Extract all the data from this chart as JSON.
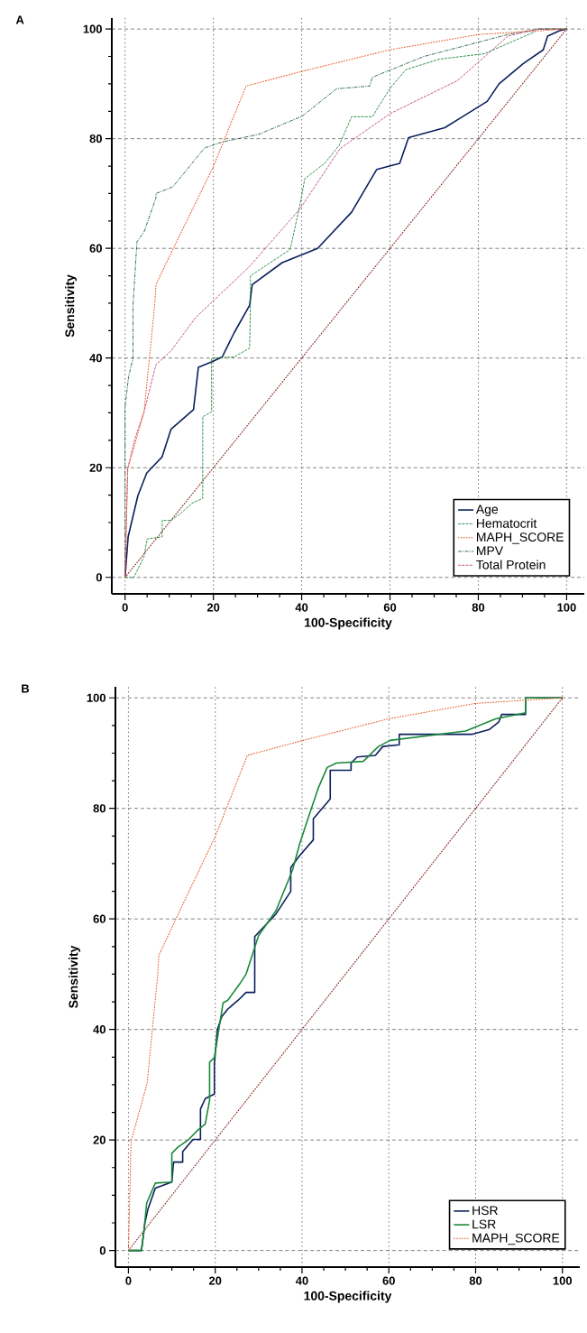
{
  "chart_data": [
    {
      "type": "line",
      "title": "A",
      "xlabel": "100-Specificity",
      "ylabel": "Sensitivity",
      "xlim": [
        -3,
        104
      ],
      "ylim": [
        -3,
        102
      ],
      "xticks": [
        0,
        20,
        40,
        60,
        80,
        100
      ],
      "yticks": [
        0,
        20,
        40,
        60,
        80,
        100
      ],
      "grid": true,
      "legend": "bottom right",
      "series": [
        {
          "name": "Age",
          "color": "#0a1f5c",
          "line_style": "solid",
          "x": [
            0,
            0.7,
            2.9,
            4.9,
            8.4,
            10.4,
            15.5,
            16.6,
            19.6,
            22,
            24.7,
            28.2,
            28.8,
            35.6,
            43.6,
            51.3,
            57,
            62.2,
            64.2,
            72.4,
            82,
            84.7,
            90.2,
            94.7,
            95.7,
            98.4,
            100
          ],
          "values": [
            0,
            7.4,
            14.9,
            19,
            22,
            27,
            30.6,
            38.3,
            39.3,
            40.2,
            44.6,
            49.6,
            53.4,
            57.4,
            60,
            66.6,
            74.4,
            75.5,
            80.2,
            82,
            86.8,
            90,
            93.7,
            96.2,
            98.7,
            99.7,
            100
          ]
        },
        {
          "name": "Hematocrit",
          "color": "#1a8a3a",
          "line_style": "dashed",
          "x": [
            0,
            2,
            4.3,
            5,
            8.4,
            8.4,
            10.4,
            12.5,
            15.1,
            17.6,
            17.6,
            19.6,
            19.6,
            24.7,
            28.2,
            28.4,
            28.4,
            37.4,
            39.7,
            40.7,
            45.2,
            48.5,
            51.3,
            56,
            60.1,
            63.6,
            71.2,
            81.4,
            92.8,
            93.5,
            100
          ],
          "values": [
            0,
            0,
            3.8,
            7,
            7.4,
            10.4,
            10.4,
            11.6,
            13.5,
            14.4,
            29.3,
            30.2,
            40,
            40.2,
            41.8,
            49.6,
            55,
            59.8,
            68.3,
            72.7,
            75.5,
            78.8,
            84,
            84,
            89.3,
            92.6,
            94.5,
            95.5,
            99.5,
            100,
            100
          ]
        },
        {
          "name": "MAPH_SCORE",
          "color": "#e8602c",
          "line_style": "dotted",
          "x": [
            0,
            0.6,
            4.3,
            6.7,
            7,
            11.9,
            20,
            27.4,
            39.7,
            59.9,
            80,
            100
          ],
          "values": [
            0,
            19.8,
            30.2,
            49.6,
            53.4,
            61.6,
            74.9,
            89.6,
            92.2,
            96.2,
            99,
            100
          ]
        },
        {
          "name": "MPV",
          "color": "#1f5f4a",
          "line_style": "dashdot",
          "x": [
            0,
            0,
            0.8,
            1.8,
            1.8,
            2.7,
            4.3,
            7,
            7,
            10.8,
            18,
            22,
            30.3,
            40.1,
            47.9,
            55.4,
            56,
            67.7,
            86.7,
            93.5,
            100
          ],
          "values": [
            0,
            31,
            36.6,
            40,
            49.6,
            61.2,
            63,
            69.2,
            70,
            71.2,
            78.3,
            79.4,
            80.8,
            84.1,
            89.1,
            89.6,
            91.2,
            95,
            99,
            100,
            100
          ]
        },
        {
          "name": "Total Protein",
          "color": "#c0408a",
          "line_style": "dashed",
          "x": [
            0,
            0.6,
            2.2,
            4.3,
            7,
            10.4,
            16,
            28.2,
            39.7,
            48.7,
            60.1,
            75.3,
            86.7,
            93.5,
            100
          ],
          "values": [
            0,
            19.8,
            25.2,
            30.2,
            38.8,
            41.3,
            47.4,
            56.7,
            67.3,
            78.2,
            84.6,
            90.6,
            98.7,
            100,
            100
          ]
        },
        {
          "color": "#8b2525",
          "line_style": "dotted",
          "x": [
            0,
            100
          ],
          "values": [
            0,
            100
          ]
        }
      ]
    },
    {
      "type": "line",
      "title": "B",
      "xlabel": "100-Specificity",
      "ylabel": "Sensitivity",
      "xlim": [
        -3,
        104
      ],
      "ylim": [
        -3,
        102
      ],
      "xticks": [
        0,
        20,
        40,
        60,
        80,
        100
      ],
      "yticks": [
        0,
        20,
        40,
        60,
        80,
        100
      ],
      "grid": true,
      "legend": "bottom right",
      "series": [
        {
          "name": "HSR",
          "color": "#0a1f5c",
          "line_style": "solid",
          "x": [
            0,
            3,
            3.8,
            4.5,
            6.2,
            10,
            10.4,
            12.5,
            12.5,
            14.9,
            16.6,
            16.6,
            17.7,
            19.8,
            19.8,
            20.5,
            21.5,
            22.9,
            25.3,
            27.1,
            29.1,
            29.1,
            34,
            37.4,
            37.4,
            39.5,
            42.6,
            42.6,
            46.5,
            46.5,
            51.3,
            51.3,
            52.7,
            56.9,
            58.6,
            62.4,
            62.4,
            79.1,
            83.2,
            85.3,
            86,
            91.5,
            91.5,
            100
          ],
          "values": [
            0,
            0,
            5,
            7.5,
            11.3,
            12.4,
            16,
            16,
            17.9,
            20.1,
            20.1,
            25.6,
            27.5,
            28.3,
            33.8,
            40,
            42.3,
            43.7,
            45.3,
            46.7,
            46.7,
            56.8,
            60.9,
            65,
            69.3,
            71.5,
            74.3,
            78.1,
            81.7,
            86.9,
            86.9,
            88.2,
            89.3,
            89.6,
            91.2,
            91.5,
            93.4,
            93.4,
            94.3,
            95.6,
            97,
            97,
            100,
            100
          ]
        },
        {
          "name": "LSR",
          "color": "#1a8a3a",
          "line_style": "solid",
          "x": [
            0,
            3,
            3.5,
            4.2,
            6.2,
            10,
            10,
            11.4,
            13.9,
            16,
            17.7,
            18.7,
            18.7,
            19.8,
            21.8,
            22.9,
            25.7,
            27.1,
            30,
            34,
            37.8,
            39.5,
            41.6,
            43.7,
            45.8,
            47.9,
            54.1,
            57.6,
            60.3,
            77.7,
            84.6,
            91.5,
            91.5,
            100
          ],
          "values": [
            0,
            0,
            3,
            8.6,
            12.2,
            12.4,
            17.6,
            18.7,
            20.1,
            21.8,
            22.9,
            27.2,
            34.1,
            34.9,
            44.8,
            45.3,
            48.3,
            50,
            57,
            61.5,
            68.8,
            73.7,
            78.7,
            83.6,
            87.4,
            88.2,
            88.5,
            91.2,
            92.3,
            94,
            96.2,
            97.3,
            100,
            100
          ]
        },
        {
          "name": "MAPH_SCORE",
          "color": "#e8602c",
          "line_style": "dotted",
          "x": [
            0,
            0.6,
            4.3,
            6.7,
            7,
            11.9,
            20,
            27.4,
            39.7,
            59.9,
            80,
            100
          ],
          "values": [
            0,
            19.8,
            30.2,
            49.6,
            53.4,
            61.6,
            74.9,
            89.6,
            92.2,
            96.2,
            99,
            100
          ]
        },
        {
          "color": "#8b2525",
          "line_style": "dotted",
          "x": [
            0,
            100
          ],
          "values": [
            0,
            100
          ]
        }
      ]
    }
  ]
}
